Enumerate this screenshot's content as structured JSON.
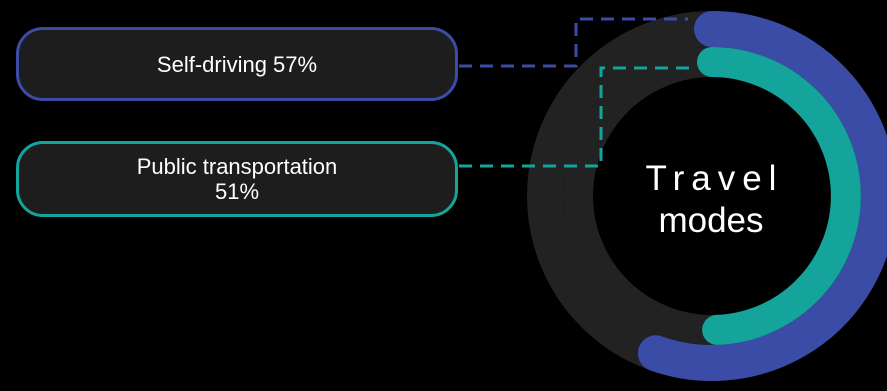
{
  "chart_data": {
    "type": "radial-bar",
    "title": "Travel modes",
    "series": [
      {
        "name": "Self-driving",
        "label": "Self-driving 57%",
        "value": 57,
        "color": "#3a4ca6"
      },
      {
        "name": "Public transportation",
        "label": "Public transportation 51%",
        "value": 51,
        "color": "#14a49b"
      }
    ],
    "max": 100,
    "track_color": "#222222"
  },
  "center": {
    "line1": "Travel",
    "line2": "modes"
  },
  "labels": {
    "self_driving": "Self-driving 57%",
    "public_line1": "Public transportation",
    "public_line2": "51%"
  }
}
